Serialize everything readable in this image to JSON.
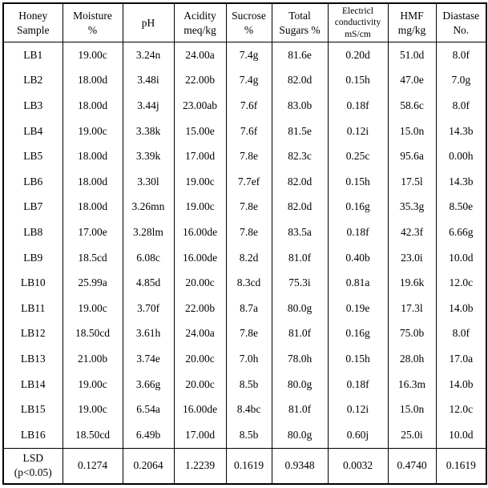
{
  "table": {
    "columns": [
      "Honey\nSample",
      "Moisture\n%",
      "pH",
      "Acidity\nmeq/kg",
      "Sucrose\n%",
      "Total\nSugars %",
      "Electricl\nconductivity\nmS/cm",
      "HMF\nmg/kg",
      "Diastase\nNo."
    ],
    "rows": [
      [
        "LB1",
        "19.00c",
        "3.24n",
        "24.00a",
        "7.4g",
        "81.6e",
        "0.20d",
        "51.0d",
        "8.0f"
      ],
      [
        "LB2",
        "18.00d",
        "3.48i",
        "22.00b",
        "7.4g",
        "82.0d",
        "0.15h",
        "47.0e",
        "7.0g"
      ],
      [
        "LB3",
        "18.00d",
        "3.44j",
        "23.00ab",
        "7.6f",
        "83.0b",
        "0.18f",
        "58.6c",
        "8.0f"
      ],
      [
        "LB4",
        "19.00c",
        "3.38k",
        "15.00e",
        "7.6f",
        "81.5e",
        "0.12i",
        "15.0n",
        "14.3b"
      ],
      [
        "LB5",
        "18.00d",
        "3.39k",
        "17.00d",
        "7.8e",
        "82.3c",
        "0.25c",
        "95.6a",
        "0.00h"
      ],
      [
        "LB6",
        "18.00d",
        "3.30l",
        "19.00c",
        "7.7ef",
        "82.0d",
        "0.15h",
        "17.5l",
        "14.3b"
      ],
      [
        "LB7",
        "18.00d",
        "3.26mn",
        "19.00c",
        "7.8e",
        "82.0d",
        "0.16g",
        "35.3g",
        "8.50e"
      ],
      [
        "LB8",
        "17.00e",
        "3.28lm",
        "16.00de",
        "7.8e",
        "83.5a",
        "0.18f",
        "42.3f",
        "6.66g"
      ],
      [
        "LB9",
        "18.5cd",
        "6.08c",
        "16.00de",
        "8.2d",
        "81.0f",
        "0.40b",
        "23.0i",
        "10.0d"
      ],
      [
        "LB10",
        "25.99a",
        "4.85d",
        "20.00c",
        "8.3cd",
        "75.3i",
        "0.81a",
        "19.6k",
        "12.0c"
      ],
      [
        "LB11",
        "19.00c",
        "3.70f",
        "22.00b",
        "8.7a",
        "80.0g",
        "0.19e",
        "17.3l",
        "14.0b"
      ],
      [
        "LB12",
        "18.50cd",
        "3.61h",
        "24.00a",
        "7.8e",
        "81.0f",
        "0.16g",
        "75.0b",
        "8.0f"
      ],
      [
        "LB13",
        "21.00b",
        "3.74e",
        "20.00c",
        "7.0h",
        "78.0h",
        "0.15h",
        "28.0h",
        "17.0a"
      ],
      [
        "LB14",
        "19.00c",
        "3.66g",
        "20.00c",
        "8.5b",
        "80.0g",
        "0.18f",
        "16.3m",
        "14.0b"
      ],
      [
        "LB15",
        "19.00c",
        "6.54a",
        "16.00de",
        "8.4bc",
        "81.0f",
        "0.12i",
        "15.0n",
        "12.0c"
      ],
      [
        "LB16",
        "18.50cd",
        "6.49b",
        "17.00d",
        "8.5b",
        "80.0g",
        "0.60j",
        "25.0i",
        "10.0d"
      ]
    ],
    "footer": [
      "LSD\n(p<0.05)",
      "0.1274",
      "0.2064",
      "1.2239",
      "0.1619",
      "0.9348",
      "0.0032",
      "0.4740",
      "0.1619"
    ]
  }
}
